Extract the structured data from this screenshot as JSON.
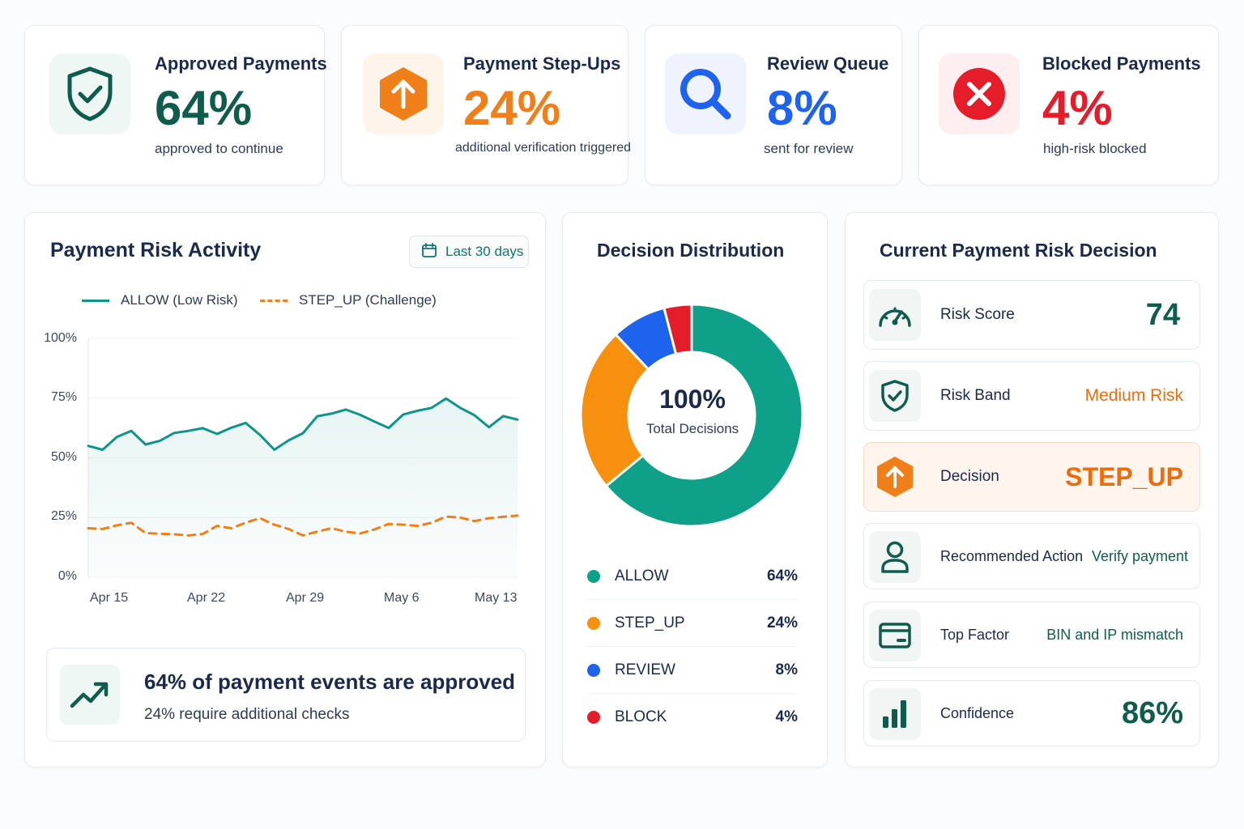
{
  "kpis": [
    {
      "title": "Approved Payments",
      "value": "64%",
      "subtitle": "approved to continue",
      "color": "#0f5c4c",
      "icon": "shield-check-icon"
    },
    {
      "title": "Payment Step-Ups",
      "value": "24%",
      "subtitle": "additional verification triggered",
      "color": "#f07f1a",
      "icon": "arrow-up-icon"
    },
    {
      "title": "Review Queue",
      "value": "8%",
      "subtitle": "sent for review",
      "color": "#1d63ed",
      "icon": "search-icon"
    },
    {
      "title": "Blocked Payments",
      "value": "4%",
      "subtitle": "high-risk blocked",
      "color": "#e51c2a",
      "icon": "close-circle-icon"
    }
  ],
  "activity": {
    "title": "Payment Risk Activity",
    "date_range": "Last 30 days",
    "insight_headline": "64% of payment events are approved",
    "insight_sub": "24% require additional checks"
  },
  "chart_data": {
    "type": "line",
    "x": [
      "Apr 14",
      "Apr 15",
      "Apr 16",
      "Apr 17",
      "Apr 18",
      "Apr 19",
      "Apr 20",
      "Apr 21",
      "Apr 22",
      "Apr 23",
      "Apr 24",
      "Apr 25",
      "Apr 26",
      "Apr 27",
      "Apr 28",
      "Apr 29",
      "Apr 30",
      "May 1",
      "May 2",
      "May 3",
      "May 4",
      "May 5",
      "May 6",
      "May 7",
      "May 8",
      "May 9",
      "May 10",
      "May 11",
      "May 12",
      "May 13",
      "May 14"
    ],
    "x_ticks": [
      "Apr 15",
      "Apr 22",
      "Apr 29",
      "May 6",
      "May 13"
    ],
    "y_ticks": [
      "100%",
      "75%",
      "50%",
      "25%",
      "0%"
    ],
    "ylim": [
      0,
      100
    ],
    "series": [
      {
        "name": "ALLOW (Low Risk)",
        "color": "#0f9488",
        "style": "solid",
        "fill": true,
        "values": [
          55.0,
          53.4,
          58.7,
          61.3,
          55.6,
          57.1,
          60.4,
          61.3,
          62.4,
          60.0,
          62.6,
          64.6,
          59.6,
          53.4,
          57.3,
          60.3,
          67.4,
          68.5,
          70.2,
          68.0,
          65.2,
          62.5,
          68.1,
          69.7,
          70.9,
          74.8,
          70.9,
          67.8,
          62.8,
          67.5,
          66.0
        ]
      },
      {
        "name": "STEP_UP (Challenge)",
        "color": "#f07f1a",
        "style": "dashed",
        "fill": false,
        "values": [
          20.5,
          20.2,
          21.7,
          22.8,
          18.5,
          18.2,
          18.0,
          17.5,
          18.1,
          21.5,
          20.5,
          22.8,
          24.7,
          22.0,
          20.2,
          17.5,
          19.1,
          20.5,
          19.1,
          18.3,
          20.0,
          22.3,
          22.0,
          21.5,
          22.8,
          25.4,
          25.0,
          23.5,
          24.7,
          25.3,
          25.8
        ]
      }
    ]
  },
  "distribution": {
    "title": "Decision Distribution",
    "center_value": "100%",
    "center_label": "Total Decisions",
    "items": [
      {
        "label": "ALLOW",
        "pct": "64%",
        "value": 64,
        "color": "#0ea088"
      },
      {
        "label": "STEP_UP",
        "pct": "24%",
        "value": 24,
        "color": "#f7900e"
      },
      {
        "label": "REVIEW",
        "pct": "8%",
        "value": 8,
        "color": "#1d63ed"
      },
      {
        "label": "BLOCK",
        "pct": "4%",
        "value": 4,
        "color": "#e51c2a"
      }
    ]
  },
  "decision": {
    "title": "Current Payment Risk Decision",
    "rows": [
      {
        "label": "Risk Score",
        "value": "74",
        "color": "#0f5c4c",
        "icon": "gauge-icon"
      },
      {
        "label": "Risk Band",
        "value": "Medium Risk",
        "color": "#ea6c0c",
        "icon": "shield-check-icon"
      },
      {
        "label": "Decision",
        "value": "STEP_UP",
        "color": "#ea6c0c",
        "icon": "arrow-up-icon"
      },
      {
        "label": "Recommended Action",
        "value": "Verify payment",
        "color": "#0f5c4c",
        "icon": "user-icon"
      },
      {
        "label": "Top Factor",
        "value": "BIN and IP mismatch",
        "color": "#0f5c4c",
        "icon": "card-icon"
      },
      {
        "label": "Confidence",
        "value": "86%",
        "color": "#0f5c4c",
        "icon": "bar-chart-icon"
      }
    ]
  }
}
